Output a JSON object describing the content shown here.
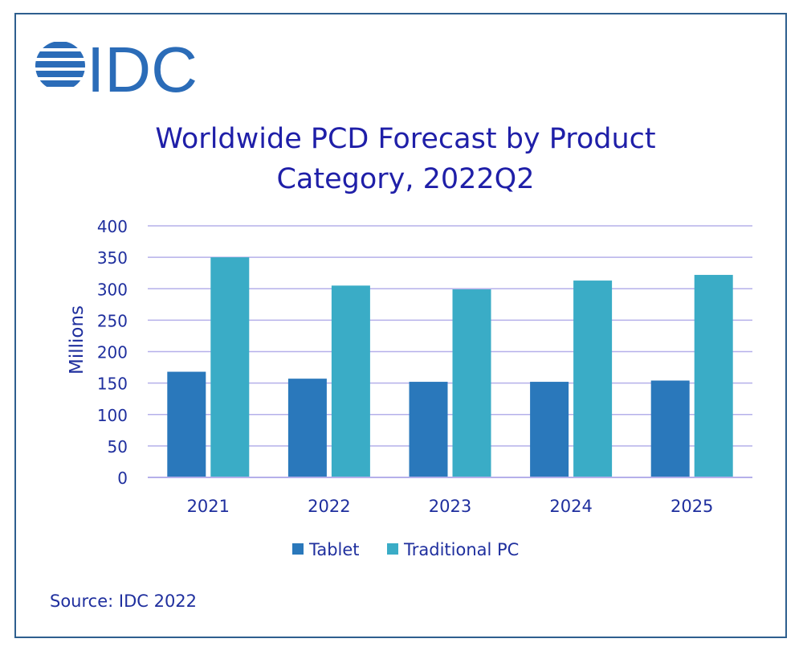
{
  "logo": {
    "text": "IDC",
    "color": "#2b6cb8"
  },
  "chart_data": {
    "type": "bar",
    "title_lines": [
      "Worldwide PCD Forecast by Product",
      "Category, 2022Q2"
    ],
    "title": "Worldwide PCD Forecast by Product Category, 2022Q2",
    "xlabel": "",
    "ylabel": "Millions",
    "categories": [
      "2021",
      "2022",
      "2023",
      "2024",
      "2025"
    ],
    "ylim": [
      0,
      400
    ],
    "yticks": [
      0,
      50,
      100,
      150,
      200,
      250,
      300,
      350,
      400
    ],
    "grid": true,
    "legend_position": "bottom",
    "series": [
      {
        "name": "Tablet",
        "color": "#2a78bb",
        "values": [
          168,
          157,
          152,
          152,
          154
        ]
      },
      {
        "name": "Traditional PC",
        "color": "#3aacc6",
        "values": [
          350,
          305,
          299,
          313,
          322
        ]
      }
    ]
  },
  "source": "Source: IDC 2022"
}
